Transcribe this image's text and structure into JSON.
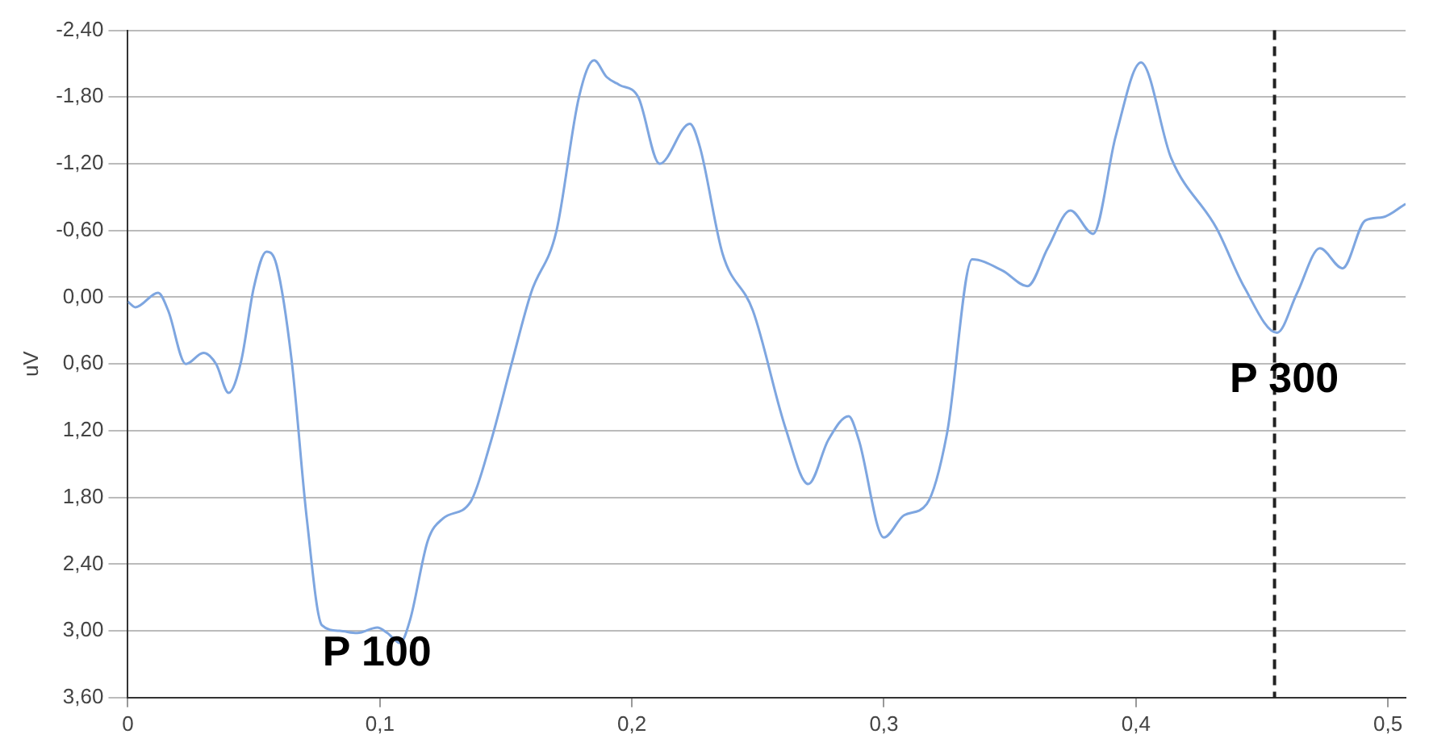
{
  "chart_data": {
    "type": "line",
    "ylabel": "uV",
    "color": "#7ea6e0",
    "grid": "y",
    "legend": false,
    "marker": "none",
    "line_style": "solid",
    "xlim": [
      0,
      0.507
    ],
    "ylim": [
      3.6,
      -2.4
    ],
    "xticks": [
      0,
      {
        "value": 0.1,
        "label": "0,1"
      },
      {
        "value": 0.2,
        "label": "0,2"
      },
      {
        "value": 0.3,
        "label": "0,3"
      },
      {
        "value": 0.4,
        "label": "0,4"
      },
      {
        "value": 0.5,
        "label": "0,5"
      }
    ],
    "yticks": [
      {
        "value": -2.4,
        "label": "-2,40"
      },
      {
        "value": -1.8,
        "label": "-1,80"
      },
      {
        "value": -1.2,
        "label": "-1,20"
      },
      {
        "value": -0.6,
        "label": "-0,60"
      },
      {
        "value": 0,
        "label": "0,00"
      },
      {
        "value": 0.6,
        "label": "0,60"
      },
      {
        "value": 1.2,
        "label": "1,20"
      },
      {
        "value": 1.8,
        "label": "1,80"
      },
      {
        "value": 2.4,
        "label": "2,40"
      },
      {
        "value": 3.0,
        "label": "3,00"
      },
      {
        "value": 3.6,
        "label": "3,60"
      }
    ],
    "x": [
      0,
      0.003,
      0.012,
      0.016,
      0.023,
      0.03,
      0.035,
      0.04,
      0.045,
      0.05,
      0.055,
      0.059,
      0.065,
      0.071,
      0.077,
      0.084,
      0.091,
      0.099,
      0.103,
      0.108,
      0.112,
      0.119,
      0.125,
      0.136,
      0.144,
      0.152,
      0.16,
      0.17,
      0.179,
      0.185,
      0.19,
      0.195,
      0.2025,
      0.211,
      0.223,
      0.227,
      0.236,
      0.248,
      0.261,
      0.27,
      0.278,
      0.286,
      0.29,
      0.3,
      0.308,
      0.317,
      0.325,
      0.335,
      0.347,
      0.357,
      0.365,
      0.374,
      0.383,
      0.392,
      0.402,
      0.414,
      0.432,
      0.443,
      0.456,
      0.464,
      0.473,
      0.482,
      0.491,
      0.498,
      0.507
    ],
    "values": [
      0.04,
      0.09,
      -0.04,
      0.12,
      0.6,
      0.5,
      0.6,
      0.86,
      0.57,
      -0.09,
      -0.41,
      -0.29,
      0.57,
      1.99,
      2.95,
      3.0,
      3.02,
      2.97,
      3.02,
      3.11,
      2.9,
      2.19,
      1.99,
      1.84,
      1.3,
      0.62,
      -0.04,
      -0.59,
      -1.8,
      -2.13,
      -1.98,
      -1.91,
      -1.8,
      -1.2,
      -1.56,
      -1.35,
      -0.39,
      0.12,
      1.18,
      1.68,
      1.28,
      1.07,
      1.28,
      2.16,
      1.96,
      1.86,
      1.23,
      -0.34,
      -0.24,
      -0.1,
      -0.44,
      -0.78,
      -0.57,
      -1.45,
      -2.11,
      -1.25,
      -0.62,
      -0.09,
      0.32,
      -0.04,
      -0.44,
      -0.26,
      -0.69,
      -0.72,
      -0.84
    ],
    "ref_lines": [
      {
        "axis": "x",
        "value": 0.455,
        "color": "#222222",
        "line_style": "dashed"
      }
    ],
    "annotations": [
      "P 100",
      "P 300"
    ]
  }
}
